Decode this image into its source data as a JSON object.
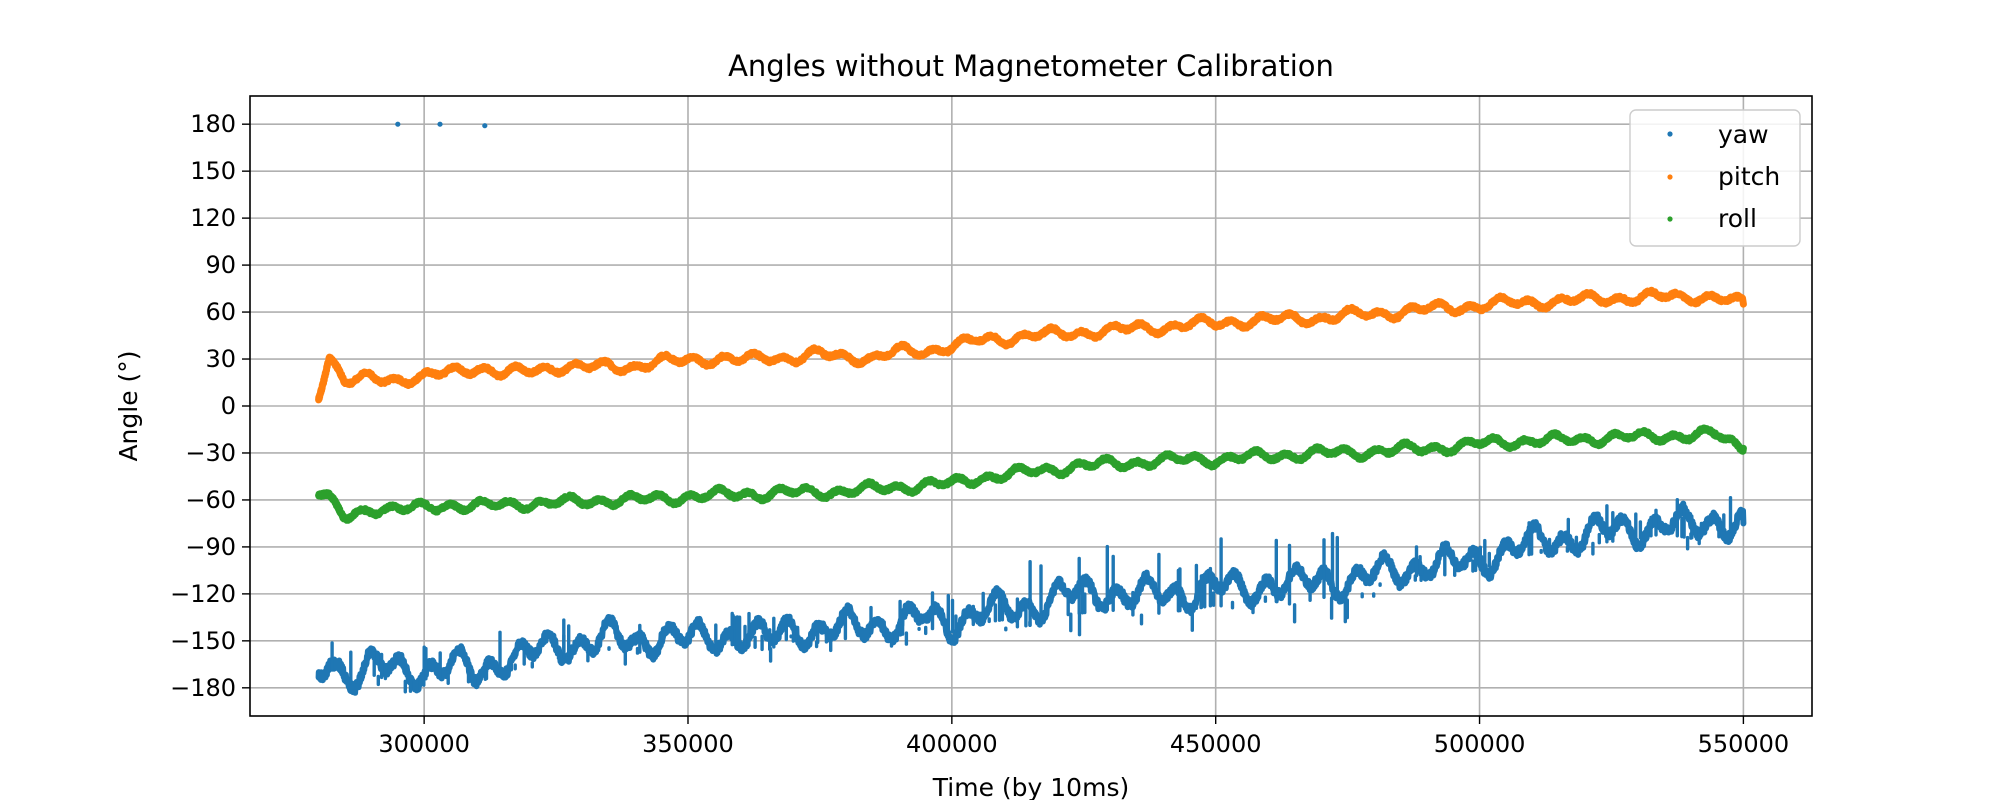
{
  "chart_data": {
    "type": "scatter",
    "title": "Angles without Magnetometer Calibration",
    "xlabel": "Time (by 10ms)",
    "ylabel": "Angle (°)",
    "xlim": [
      267000,
      563000
    ],
    "ylim": [
      -198,
      198
    ],
    "xticks": [
      300000,
      350000,
      400000,
      450000,
      500000,
      550000
    ],
    "xtick_labels": [
      "300000",
      "350000",
      "400000",
      "450000",
      "500000",
      "550000"
    ],
    "yticks": [
      180,
      150,
      120,
      90,
      60,
      30,
      0,
      -30,
      -60,
      -90,
      -120,
      -150,
      -180
    ],
    "ytick_labels": [
      "180",
      "150",
      "120",
      "90",
      "60",
      "30",
      "0",
      "−30",
      "−60",
      "−90",
      "−120",
      "−150",
      "−180"
    ],
    "grid": true,
    "legend_position": "top-right",
    "series": [
      {
        "name": "yaw",
        "color": "#1f77b4",
        "x": [
          280000,
          282000,
          285000,
          290000,
          295000,
          300000,
          305000,
          310000,
          315000,
          320000,
          325000,
          330000,
          335000,
          340000,
          345000,
          350000,
          355000,
          360000,
          365000,
          370000,
          375000,
          380000,
          385000,
          390000,
          395000,
          400000,
          405000,
          410000,
          415000,
          420000,
          425000,
          430000,
          435000,
          440000,
          445000,
          450000,
          455000,
          460000,
          465000,
          470000,
          475000,
          480000,
          485000,
          490000,
          495000,
          500000,
          505000,
          510000,
          515000,
          520000,
          525000,
          530000,
          535000,
          540000,
          545000,
          550000
        ],
        "values": [
          -175,
          -160,
          -172,
          -165,
          -170,
          -168,
          -165,
          -172,
          -160,
          -158,
          -155,
          -150,
          -148,
          -152,
          -145,
          -150,
          -148,
          -145,
          -150,
          -140,
          -145,
          -142,
          -138,
          -140,
          -135,
          -138,
          -132,
          -130,
          -128,
          -122,
          -120,
          -118,
          -122,
          -120,
          -118,
          -115,
          -118,
          -112,
          -115,
          -110,
          -112,
          -108,
          -105,
          -100,
          -102,
          -98,
          -92,
          -88,
          -85,
          -82,
          -80,
          -78,
          -75,
          -78,
          -72,
          -75
        ],
        "spread": 12,
        "outliers": [
          {
            "x": 295000,
            "y": 180
          },
          {
            "x": 303000,
            "y": 180
          },
          {
            "x": 311500,
            "y": 179
          }
        ]
      },
      {
        "name": "pitch",
        "color": "#ff7f0e",
        "x": [
          280000,
          282000,
          285000,
          290000,
          295000,
          300000,
          305000,
          310000,
          315000,
          320000,
          325000,
          330000,
          335000,
          340000,
          345000,
          350000,
          355000,
          360000,
          365000,
          370000,
          375000,
          380000,
          385000,
          390000,
          395000,
          400000,
          405000,
          410000,
          415000,
          420000,
          425000,
          430000,
          435000,
          440000,
          445000,
          450000,
          455000,
          460000,
          465000,
          470000,
          475000,
          480000,
          485000,
          490000,
          495000,
          500000,
          505000,
          510000,
          515000,
          520000,
          525000,
          530000,
          535000,
          540000,
          545000,
          550000
        ],
        "values": [
          8,
          32,
          15,
          18,
          17,
          18,
          22,
          25,
          20,
          23,
          25,
          24,
          26,
          25,
          28,
          30,
          30,
          29,
          32,
          30,
          33,
          32,
          30,
          35,
          35,
          38,
          42,
          43,
          45,
          46,
          47,
          48,
          50,
          50,
          52,
          53,
          54,
          55,
          56,
          56,
          58,
          59,
          60,
          62,
          63,
          64,
          66,
          66,
          67,
          68,
          69,
          69,
          70,
          70,
          69,
          65
        ],
        "spread": 4
      },
      {
        "name": "roll",
        "color": "#2ca02c",
        "x": [
          280000,
          282000,
          285000,
          290000,
          295000,
          300000,
          305000,
          310000,
          315000,
          320000,
          325000,
          330000,
          335000,
          340000,
          345000,
          350000,
          355000,
          360000,
          365000,
          370000,
          375000,
          380000,
          385000,
          390000,
          395000,
          400000,
          405000,
          410000,
          415000,
          420000,
          425000,
          430000,
          435000,
          440000,
          445000,
          450000,
          455000,
          460000,
          465000,
          470000,
          475000,
          480000,
          485000,
          490000,
          495000,
          500000,
          505000,
          510000,
          515000,
          520000,
          525000,
          530000,
          535000,
          540000,
          545000,
          550000
        ],
        "values": [
          -55,
          -60,
          -72,
          -65,
          -66,
          -65,
          -63,
          -64,
          -63,
          -62,
          -62,
          -61,
          -60,
          -60,
          -59,
          -58,
          -57,
          -56,
          -56,
          -55,
          -55,
          -54,
          -53,
          -52,
          -50,
          -50,
          -46,
          -44,
          -42,
          -40,
          -38,
          -37,
          -36,
          -35,
          -34,
          -34,
          -33,
          -32,
          -31,
          -30,
          -30,
          -29,
          -28,
          -27,
          -26,
          -24,
          -23,
          -22,
          -22,
          -21,
          -20,
          -20,
          -19,
          -19,
          -18,
          -27
        ],
        "spread": 4
      }
    ]
  }
}
